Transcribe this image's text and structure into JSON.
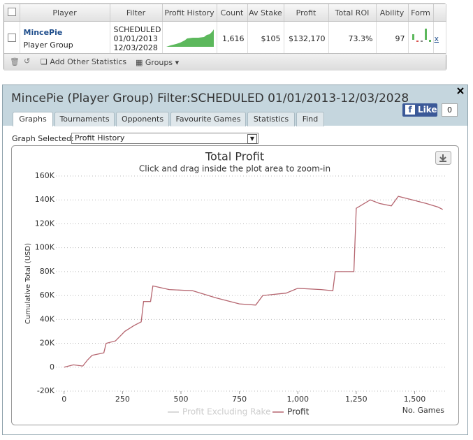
{
  "table": {
    "headers": [
      "Player",
      "Filter",
      "Profit History",
      "Count",
      "Av Stake",
      "Profit",
      "Total ROI",
      "Ability",
      "Form"
    ],
    "row": {
      "player": "MincePie",
      "group": "Player Group",
      "filter": [
        "SCHEDULED",
        "01/01/2013",
        "12/03/2028"
      ],
      "count": "1,616",
      "av_stake": "$105",
      "profit": "$132,170",
      "total_roi": "73.3%",
      "ability": "97",
      "remove": "x"
    }
  },
  "toolbar": {
    "add": "Add Other Statistics",
    "groups": "Groups"
  },
  "panel": {
    "title": "MincePie (Player Group) Filter:SCHEDULED 01/01/2013-12/03/2028",
    "tabs": [
      "Graphs",
      "Tournaments",
      "Opponents",
      "Favourite Games",
      "Statistics",
      "Find"
    ],
    "like": "Like",
    "like_count": "0",
    "graph_label": "Graph Selected:",
    "graph_selected": "Profit History"
  },
  "chart_data": {
    "type": "line",
    "title": "Total Profit",
    "subtitle": "Click and drag inside the plot area to zoom-in",
    "y_label": "Cumulative Total (USD)",
    "x_label": "No. Games",
    "xlim": [
      -35,
      1630
    ],
    "ylim": [
      -20000,
      160000
    ],
    "xticks": [
      0,
      250,
      500,
      750,
      {
        "value": 1000,
        "label": "1,000"
      },
      {
        "value": 1250,
        "label": "1,250"
      },
      {
        "value": 1500,
        "label": "1,500"
      }
    ],
    "yticks": [
      {
        "value": -20000,
        "label": "-20K"
      },
      0,
      {
        "value": 20000,
        "label": "20K"
      },
      {
        "value": 40000,
        "label": "40K"
      },
      {
        "value": 60000,
        "label": "60K"
      },
      {
        "value": 80000,
        "label": "80K"
      },
      {
        "value": 100000,
        "label": "100K"
      },
      {
        "value": 120000,
        "label": "120K"
      },
      {
        "value": 140000,
        "label": "140K"
      },
      {
        "value": 160000,
        "label": "160K"
      }
    ],
    "grid": true,
    "hidden_series": [
      {
        "name": "Profit Excluding Rake",
        "color": "#cccccc"
      }
    ],
    "series": [
      {
        "name": "Profit",
        "color": "#b5656f",
        "x": [
          0,
          40,
          80,
          100,
          120,
          170,
          180,
          220,
          260,
          300,
          330,
          340,
          370,
          380,
          450,
          550,
          650,
          750,
          820,
          850,
          950,
          1000,
          1100,
          1150,
          1160,
          1240,
          1250,
          1310,
          1350,
          1400,
          1430,
          1470,
          1550,
          1600,
          1620
        ],
        "values": [
          0,
          2000,
          1000,
          6000,
          10000,
          12000,
          20000,
          22000,
          30000,
          35000,
          38000,
          55000,
          55000,
          68000,
          65000,
          64000,
          58000,
          53000,
          52000,
          60000,
          62000,
          66000,
          65000,
          64000,
          80000,
          80000,
          133000,
          140000,
          137000,
          135000,
          143000,
          141000,
          137000,
          134000,
          132000
        ]
      }
    ]
  }
}
